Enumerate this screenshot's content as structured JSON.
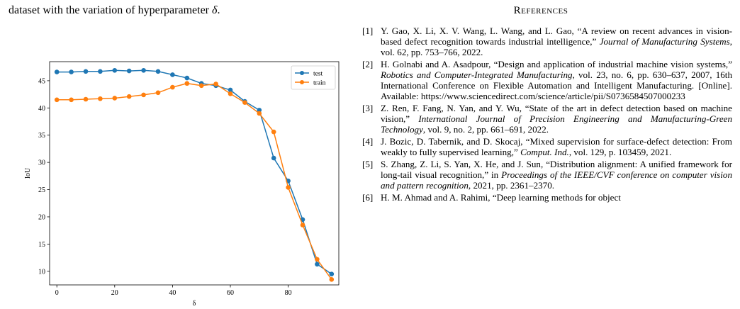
{
  "caption": {
    "prefix": "dataset with the variation of hyperparameter ",
    "symbol": "δ",
    "suffix": "."
  },
  "references_heading": "References",
  "references": [
    {
      "num": "[1]",
      "before": "Y. Gao, X. Li, X. V. Wang, L. Wang, and L. Gao, “A review on recent advances in vision-based defect recognition towards industrial intelligence,” ",
      "venue": "Journal of Manufacturing Systems",
      "after": ", vol. 62, pp. 753–766, 2022."
    },
    {
      "num": "[2]",
      "before": "H. Golnabi and A. Asadpour, “Design and application of industrial machine vision systems,” ",
      "venue": "Robotics and Computer-Integrated Manufacturing",
      "after": ", vol. 23, no. 6, pp. 630–637, 2007, 16th International Conference on Flexible Automation and Intelligent Manufacturing. [Online]. Available: https://www.sciencedirect.com/science/article/pii/S0736584507000233"
    },
    {
      "num": "[3]",
      "before": "Z. Ren, F. Fang, N. Yan, and Y. Wu, “State of the art in defect detection based on machine vision,” ",
      "venue": "International Journal of Precision Engineering and Manufacturing-Green Technology",
      "after": ", vol. 9, no. 2, pp. 661–691, 2022."
    },
    {
      "num": "[4]",
      "before": "J. Bozic, D. Tabernik, and D. Skocaj, “Mixed supervision for surface-defect detection: From weakly to fully supervised learning,” ",
      "venue": "Comput. Ind.",
      "after": ", vol. 129, p. 103459, 2021."
    },
    {
      "num": "[5]",
      "before": "S. Zhang, Z. Li, S. Yan, X. He, and J. Sun, “Distribution alignment: A unified framework for long-tail visual recognition,” in ",
      "venue": "Proceedings of the IEEE/CVF conference on computer vision and pattern recognition",
      "after": ", 2021, pp. 2361–2370."
    },
    {
      "num": "[6]",
      "before": "H. M. Ahmad and A. Rahimi, “Deep learning methods for object",
      "venue": "",
      "after": ""
    }
  ],
  "chart_data": {
    "type": "line",
    "xlabel": "δ",
    "ylabel": "IoU",
    "xlim": [
      -2.5,
      97.5
    ],
    "ylim": [
      7.5,
      48.5
    ],
    "xticks": [
      0,
      20,
      40,
      60,
      80
    ],
    "yticks": [
      10,
      15,
      20,
      25,
      30,
      35,
      40,
      45
    ],
    "grid": false,
    "legend_position": "top-right",
    "x": [
      0,
      5,
      10,
      15,
      20,
      25,
      30,
      35,
      40,
      45,
      50,
      55,
      60,
      65,
      70,
      75,
      80,
      85,
      90,
      95
    ],
    "series": [
      {
        "name": "test",
        "color": "#1f77b4",
        "values": [
          46.6,
          46.6,
          46.7,
          46.7,
          46.9,
          46.8,
          46.9,
          46.7,
          46.1,
          45.5,
          44.5,
          44.1,
          43.3,
          41.2,
          39.6,
          30.8,
          26.6,
          19.5,
          11.3,
          9.5
        ]
      },
      {
        "name": "train",
        "color": "#ff7f0e",
        "values": [
          41.5,
          41.5,
          41.6,
          41.7,
          41.8,
          42.1,
          42.4,
          42.8,
          43.8,
          44.5,
          44.1,
          44.4,
          42.6,
          41.0,
          39.0,
          35.6,
          25.4,
          18.5,
          12.2,
          8.5
        ]
      }
    ]
  }
}
